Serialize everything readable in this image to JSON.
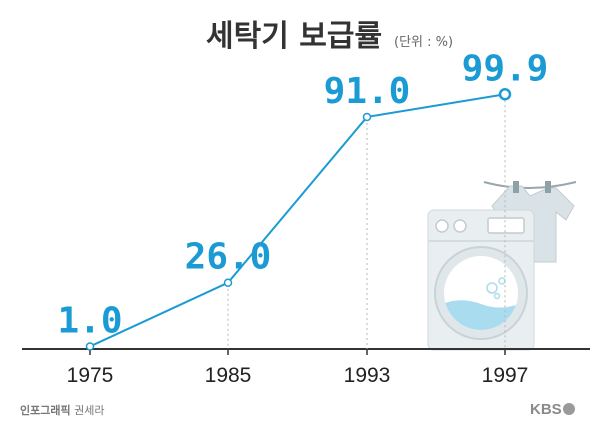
{
  "colors": {
    "accent": "#1b9bd3",
    "axis": "#333333",
    "guide": "#b5b5b5",
    "machine_body": "#e9eef1",
    "machine_window": "#ffffff",
    "water": "#a9dcee",
    "shirt": "#d9e2e6"
  },
  "header": {
    "title": "세탁기 보급률",
    "unit": "(단위 : %)"
  },
  "chart_data": {
    "type": "line",
    "title": "세탁기 보급률",
    "unit": "(단위 : %)",
    "xlabel": "",
    "ylabel": "",
    "ylim": [
      0,
      100
    ],
    "grid": false,
    "categories": [
      "1975",
      "1985",
      "1993",
      "1997"
    ],
    "series": [
      {
        "values": [
          1.0,
          26.0,
          91.0,
          99.9
        ],
        "labels": [
          "1.0",
          "26.0",
          "91.0",
          "99.9"
        ]
      }
    ]
  },
  "illustration": {
    "washing_machine_icon": "washing-machine-icon",
    "shirt_icon": "hanging-shirt-icon"
  },
  "footer": {
    "credit_bold": "인포그래픽",
    "credit_name": "권세라",
    "brand": "KBS"
  }
}
